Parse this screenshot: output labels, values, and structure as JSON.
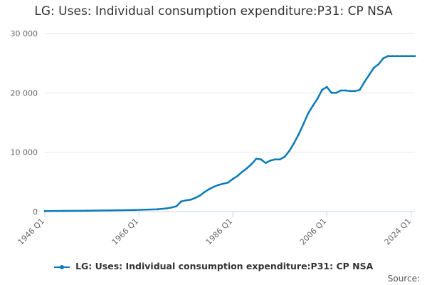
{
  "title": "LG: Uses: Individual consumption expenditure:P31: CP NSA",
  "source_label": "Source:",
  "colors": {
    "series": "#0c7bb8",
    "grid": "#e6e6e6",
    "axis": "#ccd6eb"
  },
  "chart_data": {
    "type": "line",
    "title": "LG: Uses: Individual consumption expenditure:P31: CP NSA",
    "xlabel": "",
    "ylabel": "",
    "x_range": [
      1946.0,
      2024.75
    ],
    "ylim": [
      0,
      30000
    ],
    "y_ticks": [
      0,
      10000,
      20000,
      30000
    ],
    "y_tick_labels": [
      "0",
      "10 000",
      "20 000",
      "30 000"
    ],
    "x_ticks": [
      1946,
      1966,
      1986,
      2006,
      2024
    ],
    "x_tick_labels": [
      "1946 Q1",
      "1966 Q1",
      "1986 Q1",
      "2006 Q1",
      "2024 Q1"
    ],
    "grid": true,
    "legend_position": "bottom-center",
    "series": [
      {
        "name": "LG: Uses: Individual consumption expenditure:P31: CP NSA",
        "x": [
          1946,
          1950,
          1955,
          1960,
          1965,
          1970,
          1972,
          1973,
          1974,
          1975,
          1976,
          1977,
          1978,
          1979,
          1980,
          1981,
          1982,
          1983,
          1984,
          1985,
          1986,
          1987,
          1988,
          1989,
          1990,
          1991,
          1992,
          1993,
          1994,
          1995,
          1996,
          1997,
          1998,
          1999,
          2000,
          2001,
          2002,
          2003,
          2004,
          2005,
          2006,
          2007,
          2008,
          2009,
          2010,
          2011,
          2012,
          2013,
          2014,
          2015,
          2016,
          2017,
          2018,
          2019,
          2020,
          2021,
          2022,
          2023,
          2024,
          2024.75
        ],
        "y": [
          100,
          120,
          160,
          210,
          270,
          400,
          550,
          700,
          900,
          1700,
          1900,
          2000,
          2300,
          2700,
          3300,
          3800,
          4200,
          4500,
          4700,
          4900,
          5500,
          6000,
          6700,
          7300,
          8000,
          8900,
          8800,
          8200,
          8600,
          8800,
          8800,
          9200,
          10200,
          11500,
          13000,
          14700,
          16500,
          17800,
          19000,
          20500,
          21000,
          20000,
          20000,
          20400,
          20400,
          20300,
          20300,
          20500,
          21800,
          23000,
          24200,
          24800,
          25800,
          26200,
          26200,
          26200,
          26200,
          26200,
          26200,
          26200
        ]
      }
    ]
  }
}
